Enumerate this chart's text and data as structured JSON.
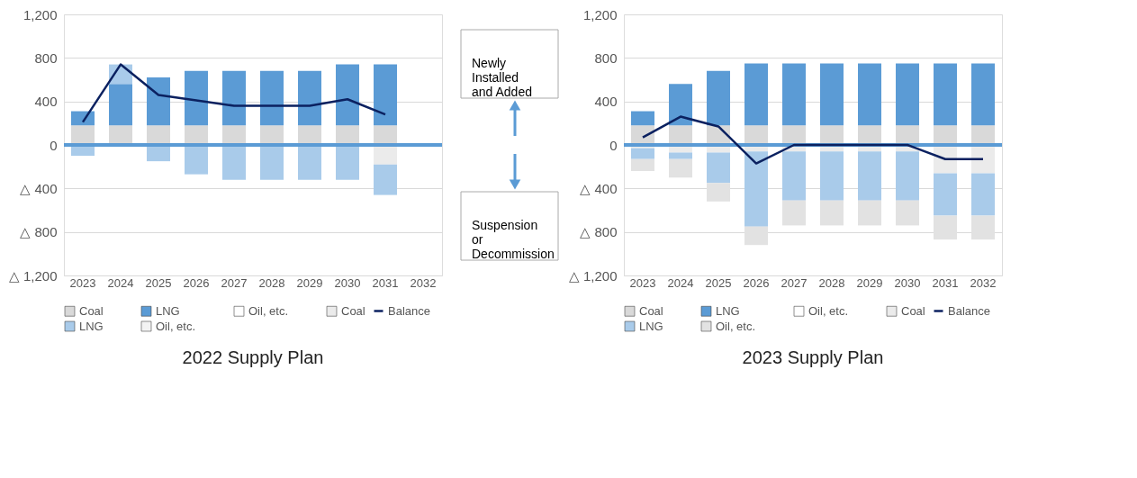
{
  "chart_data": [
    {
      "type": "bar",
      "title": "2022 Supply Plan",
      "stacked": true,
      "grid": "y",
      "legend": "bottom",
      "categories": [
        "2023",
        "2024",
        "2025",
        "2026",
        "2027",
        "2028",
        "2029",
        "2030",
        "2031",
        "2032"
      ],
      "ylim": [
        -1200,
        1200
      ],
      "yticks": [
        {
          "value": -1200,
          "label": "△ 1,200"
        },
        {
          "value": -800,
          "label": "△ 800"
        },
        {
          "value": -400,
          "label": "△ 400"
        },
        0,
        400,
        800,
        {
          "value": 1200,
          "label": "1,200"
        }
      ],
      "ref_lines": [
        {
          "axis": "y",
          "value": 0,
          "color": "#5b9bd5"
        }
      ],
      "annotations": [
        "Newly Installed and Added",
        "Suspension or Decommission"
      ],
      "series": [
        {
          "name": "Coal",
          "color": "#d9d9d9",
          "values": [
            180,
            180,
            180,
            180,
            180,
            180,
            180,
            180,
            180,
            null
          ]
        },
        {
          "name": "LNG",
          "color": "#5b9bd5",
          "values": [
            130,
            380,
            440,
            500,
            500,
            500,
            500,
            560,
            560,
            null
          ]
        },
        {
          "name": "Oil, etc.",
          "color": "#ffffff",
          "values": [
            null,
            null,
            null,
            null,
            null,
            null,
            null,
            null,
            null,
            null
          ]
        },
        {
          "name": "Coal",
          "color": "#ebebeb",
          "values": [
            null,
            null,
            null,
            null,
            null,
            null,
            null,
            null,
            -180,
            null
          ]
        },
        {
          "name": "LNG",
          "color": "#a9cbea",
          "values": [
            -100,
            180,
            -150,
            -270,
            -320,
            -320,
            -320,
            -320,
            -280,
            null
          ]
        },
        {
          "name": "Oil, etc.",
          "color": "#f3f3f3",
          "values": [
            null,
            null,
            null,
            null,
            null,
            null,
            null,
            null,
            null,
            null
          ]
        },
        {
          "name": "Balance",
          "type": "line",
          "color": "#0b2160",
          "values": [
            210,
            740,
            460,
            410,
            360,
            360,
            360,
            420,
            280,
            null
          ]
        }
      ]
    },
    {
      "type": "bar",
      "title": "2023 Supply Plan",
      "stacked": true,
      "grid": "y",
      "legend": "bottom",
      "categories": [
        "2023",
        "2024",
        "2025",
        "2026",
        "2027",
        "2028",
        "2029",
        "2030",
        "2031",
        "2032"
      ],
      "ylim": [
        -1200,
        1200
      ],
      "yticks": [
        {
          "value": -1200,
          "label": "△ 1,200"
        },
        {
          "value": -800,
          "label": "△ 800"
        },
        {
          "value": -400,
          "label": "△ 400"
        },
        0,
        400,
        800,
        {
          "value": 1200,
          "label": "1,200"
        }
      ],
      "ref_lines": [
        {
          "axis": "y",
          "value": 0,
          "color": "#5b9bd5"
        }
      ],
      "series": [
        {
          "name": "Coal",
          "color": "#d9d9d9",
          "values": [
            180,
            180,
            180,
            180,
            180,
            180,
            180,
            180,
            180,
            180
          ]
        },
        {
          "name": "LNG",
          "color": "#5b9bd5",
          "values": [
            130,
            380,
            500,
            570,
            570,
            570,
            570,
            570,
            570,
            570
          ]
        },
        {
          "name": "Oil, etc.",
          "color": "#ffffff",
          "values": [
            null,
            null,
            null,
            null,
            null,
            null,
            null,
            null,
            null,
            null
          ]
        },
        {
          "name": "Coal",
          "color": "#ebebeb",
          "values": [
            -30,
            -70,
            -70,
            -60,
            -60,
            -60,
            -60,
            -60,
            -260,
            -260
          ]
        },
        {
          "name": "LNG",
          "color": "#a9cbea",
          "values": [
            -100,
            -60,
            -280,
            -690,
            -450,
            -450,
            -450,
            -450,
            -390,
            -390
          ]
        },
        {
          "name": "Oil, etc.",
          "color": "#e2e2e2",
          "values": [
            -110,
            -170,
            -170,
            -170,
            -230,
            -230,
            -230,
            -230,
            -220,
            -220
          ]
        },
        {
          "name": "Balance",
          "type": "line",
          "color": "#0b2160",
          "values": [
            70,
            260,
            170,
            -170,
            0,
            0,
            0,
            0,
            -130,
            -130
          ]
        }
      ]
    }
  ]
}
